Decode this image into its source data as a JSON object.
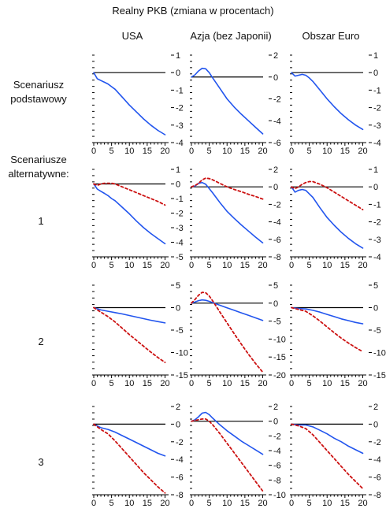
{
  "title": "Realny PKB (zmiana w procentach)",
  "columns": [
    "USA",
    "Azja (bez Japonii)",
    "Obszar Euro"
  ],
  "rows": [
    {
      "label": [
        "Scenariusz",
        "podstawowy"
      ]
    },
    {
      "label": [
        "Scenariusze",
        "alternatywne:",
        "",
        "1"
      ]
    },
    {
      "label": [
        "2"
      ]
    },
    {
      "label": [
        "3"
      ]
    }
  ],
  "colors": {
    "baseline": "#2255ee",
    "alternative": "#cc1111",
    "zero_line": "#000000"
  },
  "chart_data": [
    {
      "type": "line",
      "row": "Scenariusz podstawowy",
      "column": "USA",
      "x_ticks": [
        0,
        5,
        10,
        15,
        20
      ],
      "xlim": [
        0,
        21
      ],
      "ylim": [
        -4,
        1
      ],
      "y_ticks": [
        1,
        0,
        -1,
        -2,
        -3,
        -4
      ],
      "series": [
        {
          "style": "solid",
          "x": [
            0,
            1,
            2,
            3,
            4,
            5,
            6,
            8,
            10,
            12,
            14,
            16,
            18,
            20
          ],
          "y": [
            0,
            -0.35,
            -0.45,
            -0.55,
            -0.65,
            -0.8,
            -0.95,
            -1.4,
            -1.85,
            -2.25,
            -2.65,
            -3.0,
            -3.3,
            -3.55
          ]
        }
      ]
    },
    {
      "type": "line",
      "row": "Scenariusz podstawowy",
      "column": "Azja (bez Japonii)",
      "x_ticks": [
        0,
        5,
        10,
        15,
        20
      ],
      "xlim": [
        0,
        21
      ],
      "ylim": [
        -6,
        2
      ],
      "y_ticks": [
        2,
        0,
        -2,
        -4,
        -6
      ],
      "series": [
        {
          "style": "solid",
          "x": [
            0,
            1,
            2,
            3,
            4,
            5,
            6,
            8,
            10,
            12,
            14,
            16,
            18,
            20
          ],
          "y": [
            0,
            0.2,
            0.55,
            0.8,
            0.75,
            0.4,
            -0.1,
            -1.05,
            -2.0,
            -2.75,
            -3.4,
            -4.0,
            -4.6,
            -5.2
          ]
        }
      ]
    },
    {
      "type": "line",
      "row": "Scenariusz podstawowy",
      "column": "Obszar Euro",
      "x_ticks": [
        0,
        5,
        10,
        15,
        20
      ],
      "xlim": [
        0,
        21
      ],
      "ylim": [
        -4,
        1
      ],
      "y_ticks": [
        1,
        0,
        -1,
        -2,
        -3,
        -4
      ],
      "series": [
        {
          "style": "solid",
          "x": [
            0,
            1,
            2,
            3,
            4,
            5,
            6,
            8,
            10,
            12,
            14,
            16,
            18,
            20
          ],
          "y": [
            0,
            -0.2,
            -0.15,
            -0.1,
            -0.15,
            -0.3,
            -0.5,
            -1.0,
            -1.5,
            -1.95,
            -2.35,
            -2.7,
            -3.0,
            -3.25
          ]
        }
      ]
    },
    {
      "type": "line",
      "row": "Scenariusze alternatywne: 1",
      "column": "USA",
      "x_ticks": [
        0,
        5,
        10,
        15,
        20
      ],
      "xlim": [
        0,
        21
      ],
      "ylim": [
        -5,
        1
      ],
      "y_ticks": [
        1,
        0,
        -1,
        -2,
        -3,
        -4,
        -5
      ],
      "series": [
        {
          "style": "solid",
          "x": [
            0,
            1,
            2,
            3,
            4,
            5,
            6,
            8,
            10,
            12,
            14,
            16,
            18,
            20
          ],
          "y": [
            0,
            -0.35,
            -0.5,
            -0.65,
            -0.8,
            -1.0,
            -1.15,
            -1.6,
            -2.05,
            -2.55,
            -3.0,
            -3.4,
            -3.75,
            -4.1
          ]
        },
        {
          "style": "dashed",
          "x": [
            0,
            1,
            2,
            3,
            4,
            5,
            6,
            8,
            10,
            12,
            14,
            16,
            18,
            20
          ],
          "y": [
            0,
            -0.1,
            0.0,
            0.05,
            0.05,
            0.05,
            0.0,
            -0.2,
            -0.4,
            -0.6,
            -0.8,
            -1.0,
            -1.2,
            -1.45
          ]
        }
      ]
    },
    {
      "type": "line",
      "row": "Scenariusze alternatywne: 1",
      "column": "Azja (bez Japonii)",
      "x_ticks": [
        0,
        5,
        10,
        15,
        20
      ],
      "xlim": [
        0,
        21
      ],
      "ylim": [
        -8,
        2
      ],
      "y_ticks": [
        2,
        0,
        -2,
        -4,
        -6,
        -8
      ],
      "series": [
        {
          "style": "solid",
          "x": [
            0,
            1,
            2,
            3,
            4,
            5,
            6,
            8,
            10,
            12,
            14,
            16,
            18,
            20
          ],
          "y": [
            0,
            0.1,
            0.4,
            0.5,
            0.3,
            -0.2,
            -0.7,
            -1.8,
            -2.8,
            -3.6,
            -4.35,
            -5.05,
            -5.75,
            -6.4
          ]
        },
        {
          "style": "dashed",
          "x": [
            0,
            1,
            2,
            3,
            4,
            5,
            6,
            8,
            10,
            12,
            14,
            16,
            18,
            20
          ],
          "y": [
            0,
            0.15,
            0.4,
            0.8,
            1.0,
            0.95,
            0.8,
            0.4,
            0.0,
            -0.3,
            -0.55,
            -0.85,
            -1.1,
            -1.4
          ]
        }
      ]
    },
    {
      "type": "line",
      "row": "Scenariusze alternatywne: 1",
      "column": "Obszar Euro",
      "x_ticks": [
        0,
        5,
        10,
        15,
        20
      ],
      "xlim": [
        0,
        21
      ],
      "ylim": [
        -4,
        1
      ],
      "y_ticks": [
        1,
        0,
        -1,
        -2,
        -3,
        -4
      ],
      "series": [
        {
          "style": "solid",
          "x": [
            0,
            1,
            2,
            3,
            4,
            5,
            6,
            8,
            10,
            12,
            14,
            16,
            18,
            20
          ],
          "y": [
            0,
            -0.3,
            -0.2,
            -0.15,
            -0.2,
            -0.4,
            -0.6,
            -1.2,
            -1.75,
            -2.2,
            -2.6,
            -2.95,
            -3.25,
            -3.5
          ]
        },
        {
          "style": "dashed",
          "x": [
            0,
            1,
            2,
            3,
            4,
            5,
            6,
            8,
            10,
            12,
            14,
            16,
            18,
            20
          ],
          "y": [
            0,
            -0.1,
            0.0,
            0.15,
            0.25,
            0.3,
            0.3,
            0.15,
            -0.05,
            -0.3,
            -0.55,
            -0.8,
            -1.05,
            -1.3
          ]
        }
      ]
    },
    {
      "type": "line",
      "row": "2",
      "column": "USA",
      "x_ticks": [
        0,
        5,
        10,
        15,
        20
      ],
      "xlim": [
        0,
        21
      ],
      "ylim": [
        -15,
        5
      ],
      "y_ticks": [
        5,
        0,
        -5,
        -10,
        -15
      ],
      "series": [
        {
          "style": "solid",
          "x": [
            0,
            2,
            4,
            6,
            8,
            10,
            12,
            14,
            16,
            18,
            20
          ],
          "y": [
            0,
            -0.5,
            -0.8,
            -1.1,
            -1.4,
            -1.75,
            -2.1,
            -2.45,
            -2.8,
            -3.1,
            -3.4
          ]
        },
        {
          "style": "dashed",
          "x": [
            0,
            2,
            4,
            6,
            8,
            10,
            12,
            14,
            16,
            18,
            20
          ],
          "y": [
            0,
            -1.0,
            -2.0,
            -3.2,
            -4.6,
            -6.0,
            -7.3,
            -8.6,
            -9.9,
            -11.1,
            -12.2
          ]
        }
      ]
    },
    {
      "type": "line",
      "row": "2",
      "column": "Azja (bez Japonii)",
      "x_ticks": [
        0,
        5,
        10,
        15,
        20
      ],
      "xlim": [
        0,
        21
      ],
      "ylim": [
        -20,
        5
      ],
      "y_ticks": [
        5,
        0,
        -5,
        -10,
        -15,
        -20
      ],
      "series": [
        {
          "style": "solid",
          "x": [
            0,
            1,
            2,
            3,
            4,
            5,
            6,
            8,
            10,
            12,
            14,
            16,
            18,
            20
          ],
          "y": [
            0,
            0.3,
            0.7,
            0.9,
            0.8,
            0.5,
            0.1,
            -0.6,
            -1.3,
            -2.0,
            -2.7,
            -3.4,
            -4.1,
            -4.8
          ]
        },
        {
          "style": "dashed",
          "x": [
            0,
            1,
            2,
            3,
            4,
            5,
            6,
            8,
            10,
            12,
            14,
            16,
            18,
            20
          ],
          "y": [
            0,
            1.0,
            2.2,
            3.0,
            2.9,
            2.0,
            0.6,
            -2.5,
            -5.5,
            -8.5,
            -11.4,
            -14.2,
            -16.8,
            -19.2
          ]
        }
      ]
    },
    {
      "type": "line",
      "row": "2",
      "column": "Obszar Euro",
      "x_ticks": [
        0,
        5,
        10,
        15,
        20
      ],
      "xlim": [
        0,
        21
      ],
      "ylim": [
        -15,
        5
      ],
      "y_ticks": [
        5,
        0,
        -5,
        -10,
        -15
      ],
      "series": [
        {
          "style": "solid",
          "x": [
            0,
            2,
            4,
            6,
            8,
            10,
            12,
            14,
            16,
            18,
            20
          ],
          "y": [
            0,
            -0.2,
            -0.3,
            -0.6,
            -1.0,
            -1.5,
            -2.0,
            -2.5,
            -2.9,
            -3.3,
            -3.6
          ]
        },
        {
          "style": "dashed",
          "x": [
            0,
            2,
            4,
            6,
            8,
            10,
            12,
            14,
            16,
            18,
            20
          ],
          "y": [
            0,
            -0.4,
            -0.8,
            -1.8,
            -3.0,
            -4.3,
            -5.6,
            -6.8,
            -7.9,
            -8.9,
            -9.8
          ]
        }
      ]
    },
    {
      "type": "line",
      "row": "3",
      "column": "USA",
      "x_ticks": [
        0,
        5,
        10,
        15,
        20
      ],
      "xlim": [
        0,
        21
      ],
      "ylim": [
        -8,
        2
      ],
      "y_ticks": [
        2,
        0,
        -2,
        -4,
        -6,
        -8
      ],
      "series": [
        {
          "style": "solid",
          "x": [
            0,
            2,
            4,
            6,
            8,
            10,
            12,
            14,
            16,
            18,
            20
          ],
          "y": [
            0,
            -0.4,
            -0.6,
            -0.9,
            -1.3,
            -1.7,
            -2.1,
            -2.5,
            -2.9,
            -3.3,
            -3.6
          ]
        },
        {
          "style": "dashed",
          "x": [
            0,
            2,
            4,
            6,
            8,
            10,
            12,
            14,
            16,
            18,
            20
          ],
          "y": [
            0,
            -0.6,
            -1.1,
            -1.9,
            -2.8,
            -3.7,
            -4.6,
            -5.5,
            -6.3,
            -7.1,
            -7.8
          ]
        }
      ]
    },
    {
      "type": "line",
      "row": "3",
      "column": "Azja (bez Japonii)",
      "x_ticks": [
        0,
        5,
        10,
        15,
        20
      ],
      "xlim": [
        0,
        21
      ],
      "ylim": [
        -10,
        2
      ],
      "y_ticks": [
        2,
        0,
        -2,
        -4,
        -6,
        -8,
        -10
      ],
      "series": [
        {
          "style": "solid",
          "x": [
            0,
            1,
            2,
            3,
            4,
            5,
            6,
            8,
            10,
            12,
            14,
            16,
            18,
            20
          ],
          "y": [
            0,
            0.2,
            0.6,
            1.1,
            1.2,
            0.9,
            0.4,
            -0.5,
            -1.3,
            -2.0,
            -2.7,
            -3.3,
            -3.9,
            -4.5
          ]
        },
        {
          "style": "dashed",
          "x": [
            0,
            1,
            2,
            3,
            4,
            5,
            6,
            8,
            10,
            12,
            14,
            16,
            18,
            20
          ],
          "y": [
            0,
            0.1,
            0.2,
            0.3,
            0.3,
            0.0,
            -0.5,
            -1.7,
            -3.0,
            -4.3,
            -5.6,
            -6.9,
            -8.2,
            -9.5
          ]
        }
      ]
    },
    {
      "type": "line",
      "row": "3",
      "column": "Obszar Euro",
      "x_ticks": [
        0,
        5,
        10,
        15,
        20
      ],
      "xlim": [
        0,
        21
      ],
      "ylim": [
        -8,
        2
      ],
      "y_ticks": [
        2,
        0,
        -2,
        -4,
        -6,
        -8
      ],
      "series": [
        {
          "style": "solid",
          "x": [
            0,
            2,
            4,
            6,
            8,
            10,
            12,
            14,
            16,
            18,
            20
          ],
          "y": [
            0,
            -0.1,
            -0.1,
            -0.3,
            -0.7,
            -1.1,
            -1.6,
            -2.0,
            -2.5,
            -2.9,
            -3.3
          ]
        },
        {
          "style": "dashed",
          "x": [
            0,
            2,
            4,
            6,
            8,
            10,
            12,
            14,
            16,
            18,
            20
          ],
          "y": [
            0,
            -0.2,
            -0.5,
            -1.2,
            -2.1,
            -3.0,
            -3.9,
            -4.8,
            -5.7,
            -6.5,
            -7.3
          ]
        }
      ]
    }
  ]
}
